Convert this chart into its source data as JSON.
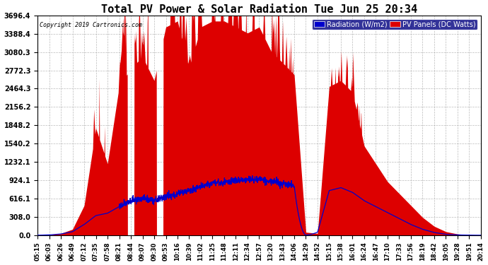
{
  "title": "Total PV Power & Solar Radiation Tue Jun 25 20:34",
  "copyright": "Copyright 2019 Cartronics.com",
  "legend_labels": [
    "Radiation (W/m2)",
    "PV Panels (DC Watts)"
  ],
  "y_max": 3696.4,
  "y_min": 0.0,
  "y_ticks": [
    0.0,
    308.0,
    616.1,
    924.1,
    1232.1,
    1540.2,
    1848.2,
    2156.2,
    2464.3,
    2772.3,
    3080.3,
    3388.4,
    3696.4
  ],
  "background_color": "#ffffff",
  "grid_color": "#aaaaaa",
  "x_labels": [
    "05:15",
    "06:03",
    "06:26",
    "06:49",
    "07:12",
    "07:35",
    "07:58",
    "08:21",
    "08:44",
    "09:07",
    "09:30",
    "09:53",
    "10:16",
    "10:39",
    "11:02",
    "11:25",
    "11:48",
    "12:11",
    "12:34",
    "12:57",
    "13:20",
    "13:43",
    "14:06",
    "14:29",
    "14:52",
    "15:15",
    "15:38",
    "16:01",
    "16:24",
    "16:47",
    "17:10",
    "17:33",
    "17:56",
    "18:19",
    "18:42",
    "19:05",
    "19:28",
    "19:51",
    "20:14"
  ],
  "pv_color": "#dd0000",
  "radiation_color": "#0000cc",
  "legend_bg": "#000080",
  "figsize": [
    6.9,
    3.75
  ],
  "dpi": 100
}
